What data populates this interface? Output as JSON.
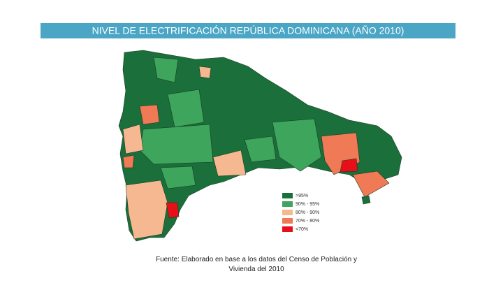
{
  "header": {
    "title": "NIVEL DE ELECTRIFICACIÓN REPÚBLICA DOMINICANA (AÑO 2010)"
  },
  "legend": {
    "items": [
      {
        "label": ">95%",
        "color": "#1b6f3a"
      },
      {
        "label": "90% - 95%",
        "color": "#3da55c"
      },
      {
        "label": "80% - 90%",
        "color": "#f6b891"
      },
      {
        "label": "70% - 80%",
        "color": "#f07a56"
      },
      {
        "label": "<70%",
        "color": "#e81018"
      }
    ]
  },
  "source": {
    "lines": [
      "Fuente: Elaborado en base a los datos del Censo de Población y",
      "Vivienda del 2010"
    ]
  }
}
